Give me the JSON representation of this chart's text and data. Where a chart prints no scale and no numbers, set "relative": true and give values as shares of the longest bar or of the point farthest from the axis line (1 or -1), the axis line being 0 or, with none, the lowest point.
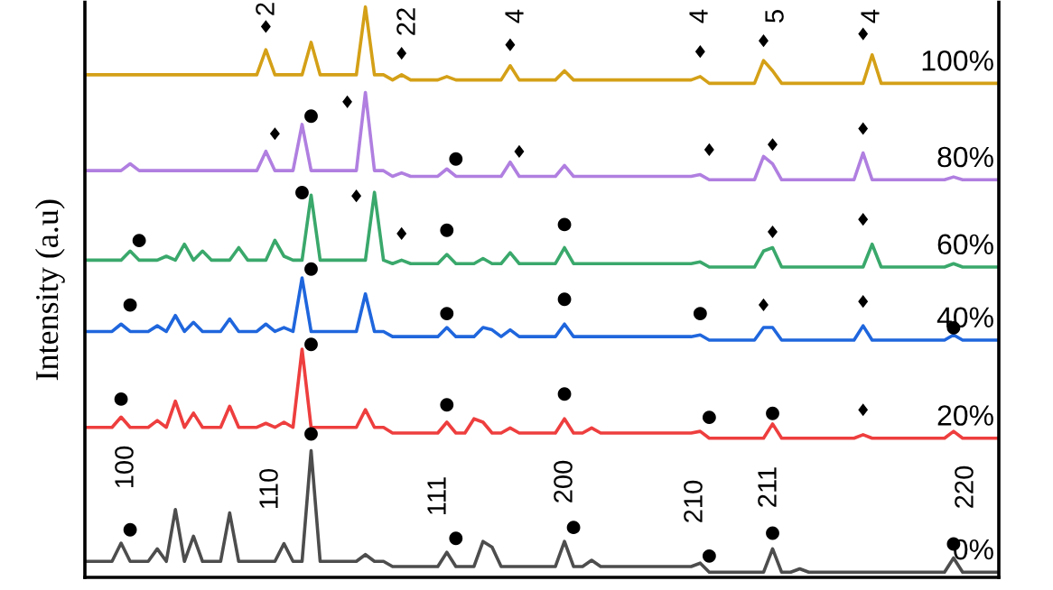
{
  "chart_data": {
    "type": "line",
    "relative": true,
    "ylabel": "Intensity (a.u)",
    "categories": [
      null,
      null,
      null,
      null,
      null,
      null,
      null,
      null,
      null,
      null,
      null,
      null,
      null,
      null,
      null,
      null,
      null,
      null,
      null,
      null,
      null,
      null,
      null,
      null,
      null,
      null,
      null,
      null,
      null,
      null,
      null,
      null,
      null,
      null,
      null,
      null,
      null,
      null,
      null,
      null,
      null,
      null,
      null,
      null,
      null,
      null,
      null,
      null,
      null,
      null,
      null,
      null,
      null,
      null,
      null,
      null,
      null,
      null,
      null,
      null,
      null,
      null,
      null,
      null,
      null,
      null,
      null,
      null,
      null,
      null,
      null,
      null,
      null,
      null,
      null,
      null,
      null,
      null,
      null,
      null,
      null,
      null,
      null,
      null,
      null,
      null,
      null,
      null,
      null,
      null,
      null,
      null,
      null,
      null,
      null,
      null,
      null,
      null,
      null,
      null,
      null,
      null
    ],
    "annotations": [
      "100",
      "110",
      "111",
      "200",
      "210",
      "211",
      "220",
      "2",
      "22",
      "4",
      "4",
      "5",
      "4",
      "●",
      "●",
      "●",
      "●",
      "●",
      "●",
      "●",
      "●",
      "●",
      "●",
      "●",
      "●",
      "●",
      "♦",
      "●",
      "●",
      "●",
      "●",
      "●",
      "●",
      "♦",
      "♦",
      "●",
      "●",
      "●",
      "●",
      "♦",
      "♦",
      "♦",
      "♦",
      "●",
      "●",
      "♦",
      "♦",
      "♦",
      "♦",
      "♦",
      "♦",
      "♦",
      "♦",
      "♦",
      "♦",
      "♦",
      "♦"
    ],
    "series": [
      {
        "name": "0%",
        "color": "#4d4d4d",
        "values": [
          0.028,
          0.028,
          0.028,
          0.028,
          0.06,
          0.028,
          0.028,
          0.028,
          0.05,
          0.028,
          0.119,
          0.028,
          0.072,
          0.028,
          0.028,
          0.028,
          0.113,
          0.028,
          0.028,
          0.028,
          0.028,
          0.028,
          0.059,
          0.028,
          0.028,
          0.222,
          0.028,
          0.028,
          0.028,
          0.028,
          0.028,
          0.04,
          0.028,
          0.028,
          0.019,
          0.019,
          0.019,
          0.019,
          0.019,
          0.019,
          0.044,
          0.019,
          0.019,
          0.019,
          0.063,
          0.053,
          0.019,
          0.019,
          0.019,
          0.019,
          0.019,
          0.019,
          0.019,
          0.063,
          0.019,
          0.019,
          0.03,
          0.019,
          0.019,
          0.019,
          0.019,
          0.019,
          0.019,
          0.019,
          0.019,
          0.019,
          0.019,
          0.019,
          0.025,
          0.009,
          0.009,
          0.009,
          0.009,
          0.009,
          0.009,
          0.009,
          0.05,
          0.009,
          0.009,
          0.015,
          0.009,
          0.009,
          0.009,
          0.009,
          0.009,
          0.009,
          0.009,
          0.009,
          0.009,
          0.009,
          0.009,
          0.009,
          0.009,
          0.009,
          0.009,
          0.009,
          0.034,
          0.009,
          0.009,
          0.009,
          0.009,
          0.009
        ]
      },
      {
        "name": "20%",
        "color": "#ee3e3e",
        "values": [
          0.263,
          0.263,
          0.263,
          0.263,
          0.281,
          0.263,
          0.263,
          0.263,
          0.275,
          0.263,
          0.309,
          0.263,
          0.288,
          0.263,
          0.263,
          0.263,
          0.3,
          0.263,
          0.263,
          0.263,
          0.27,
          0.263,
          0.272,
          0.263,
          0.4,
          0.263,
          0.263,
          0.263,
          0.263,
          0.263,
          0.263,
          0.294,
          0.263,
          0.263,
          0.253,
          0.253,
          0.253,
          0.253,
          0.253,
          0.253,
          0.272,
          0.253,
          0.253,
          0.278,
          0.272,
          0.253,
          0.253,
          0.262,
          0.253,
          0.253,
          0.253,
          0.253,
          0.253,
          0.278,
          0.253,
          0.253,
          0.262,
          0.253,
          0.253,
          0.253,
          0.253,
          0.253,
          0.253,
          0.253,
          0.253,
          0.253,
          0.253,
          0.253,
          0.256,
          0.244,
          0.244,
          0.244,
          0.244,
          0.244,
          0.244,
          0.244,
          0.269,
          0.244,
          0.244,
          0.244,
          0.244,
          0.244,
          0.244,
          0.244,
          0.244,
          0.244,
          0.25,
          0.244,
          0.244,
          0.244,
          0.244,
          0.244,
          0.244,
          0.244,
          0.244,
          0.244,
          0.256,
          0.244,
          0.244,
          0.244,
          0.244,
          0.244
        ]
      },
      {
        "name": "40%",
        "color": "#1f66dd",
        "values": [
          0.431,
          0.431,
          0.431,
          0.431,
          0.444,
          0.431,
          0.431,
          0.431,
          0.441,
          0.431,
          0.459,
          0.431,
          0.447,
          0.431,
          0.431,
          0.431,
          0.453,
          0.431,
          0.431,
          0.431,
          0.444,
          0.431,
          0.438,
          0.431,
          0.525,
          0.431,
          0.431,
          0.431,
          0.431,
          0.431,
          0.431,
          0.497,
          0.431,
          0.431,
          0.422,
          0.422,
          0.422,
          0.422,
          0.422,
          0.422,
          0.438,
          0.422,
          0.422,
          0.422,
          0.438,
          0.434,
          0.422,
          0.434,
          0.422,
          0.422,
          0.422,
          0.422,
          0.422,
          0.444,
          0.422,
          0.422,
          0.422,
          0.422,
          0.422,
          0.422,
          0.422,
          0.422,
          0.422,
          0.422,
          0.422,
          0.422,
          0.422,
          0.422,
          0.425,
          0.416,
          0.416,
          0.416,
          0.416,
          0.416,
          0.416,
          0.438,
          0.438,
          0.416,
          0.416,
          0.416,
          0.416,
          0.416,
          0.416,
          0.416,
          0.416,
          0.416,
          0.441,
          0.416,
          0.416,
          0.416,
          0.416,
          0.416,
          0.416,
          0.416,
          0.416,
          0.416,
          0.425,
          0.416,
          0.416,
          0.416,
          0.416,
          0.416
        ]
      },
      {
        "name": "60%",
        "color": "#3aa86b",
        "values": [
          0.556,
          0.556,
          0.556,
          0.556,
          0.556,
          0.572,
          0.556,
          0.556,
          0.556,
          0.563,
          0.556,
          0.584,
          0.556,
          0.572,
          0.556,
          0.556,
          0.556,
          0.578,
          0.556,
          0.556,
          0.556,
          0.591,
          0.563,
          0.556,
          0.556,
          0.67,
          0.556,
          0.556,
          0.556,
          0.556,
          0.556,
          0.556,
          0.675,
          0.556,
          0.55,
          0.556,
          0.55,
          0.55,
          0.55,
          0.55,
          0.566,
          0.55,
          0.55,
          0.55,
          0.559,
          0.55,
          0.55,
          0.569,
          0.55,
          0.55,
          0.55,
          0.55,
          0.55,
          0.578,
          0.55,
          0.55,
          0.55,
          0.55,
          0.55,
          0.55,
          0.55,
          0.55,
          0.55,
          0.55,
          0.55,
          0.55,
          0.55,
          0.55,
          0.553,
          0.544,
          0.544,
          0.544,
          0.544,
          0.544,
          0.544,
          0.572,
          0.578,
          0.544,
          0.544,
          0.544,
          0.544,
          0.544,
          0.544,
          0.544,
          0.544,
          0.544,
          0.544,
          0.584,
          0.544,
          0.544,
          0.544,
          0.544,
          0.544,
          0.544,
          0.544,
          0.544,
          0.55,
          0.544,
          0.544,
          0.544,
          0.544,
          0.544
        ]
      },
      {
        "name": "80%",
        "color": "#b07fe0",
        "values": [
          0.713,
          0.713,
          0.713,
          0.713,
          0.713,
          0.725,
          0.713,
          0.713,
          0.713,
          0.713,
          0.713,
          0.713,
          0.713,
          0.713,
          0.713,
          0.713,
          0.713,
          0.713,
          0.713,
          0.713,
          0.747,
          0.713,
          0.713,
          0.713,
          0.794,
          0.713,
          0.713,
          0.713,
          0.713,
          0.713,
          0.713,
          0.85,
          0.713,
          0.713,
          0.703,
          0.709,
          0.703,
          0.703,
          0.703,
          0.703,
          0.716,
          0.703,
          0.703,
          0.703,
          0.703,
          0.703,
          0.703,
          0.728,
          0.703,
          0.703,
          0.703,
          0.703,
          0.703,
          0.722,
          0.703,
          0.703,
          0.703,
          0.703,
          0.703,
          0.703,
          0.703,
          0.703,
          0.703,
          0.703,
          0.703,
          0.703,
          0.703,
          0.703,
          0.706,
          0.697,
          0.697,
          0.697,
          0.697,
          0.697,
          0.697,
          0.738,
          0.725,
          0.697,
          0.697,
          0.697,
          0.697,
          0.697,
          0.697,
          0.697,
          0.697,
          0.697,
          0.744,
          0.697,
          0.697,
          0.697,
          0.697,
          0.697,
          0.697,
          0.697,
          0.697,
          0.697,
          0.702,
          0.697,
          0.697,
          0.697,
          0.697,
          0.697
        ]
      },
      {
        "name": "100%",
        "color": "#d4a017",
        "values": [
          0.881,
          0.881,
          0.881,
          0.881,
          0.881,
          0.881,
          0.881,
          0.881,
          0.881,
          0.881,
          0.881,
          0.881,
          0.881,
          0.881,
          0.881,
          0.881,
          0.881,
          0.881,
          0.881,
          0.881,
          0.925,
          0.881,
          0.881,
          0.881,
          0.881,
          0.938,
          0.881,
          0.881,
          0.881,
          0.881,
          0.881,
          1,
          0.881,
          0.881,
          0.872,
          0.881,
          0.872,
          0.872,
          0.872,
          0.872,
          0.878,
          0.872,
          0.872,
          0.872,
          0.872,
          0.872,
          0.872,
          0.897,
          0.872,
          0.872,
          0.872,
          0.872,
          0.872,
          0.888,
          0.872,
          0.872,
          0.872,
          0.872,
          0.872,
          0.872,
          0.872,
          0.872,
          0.872,
          0.872,
          0.872,
          0.872,
          0.872,
          0.872,
          0.878,
          0.866,
          0.866,
          0.866,
          0.866,
          0.866,
          0.866,
          0.906,
          0.888,
          0.866,
          0.866,
          0.866,
          0.866,
          0.866,
          0.866,
          0.866,
          0.866,
          0.866,
          0.866,
          0.916,
          0.866,
          0.866,
          0.866,
          0.866,
          0.866,
          0.866,
          0.866,
          0.866,
          0.866,
          0.866,
          0.866,
          0.866,
          0.866,
          0.866
        ]
      }
    ]
  }
}
